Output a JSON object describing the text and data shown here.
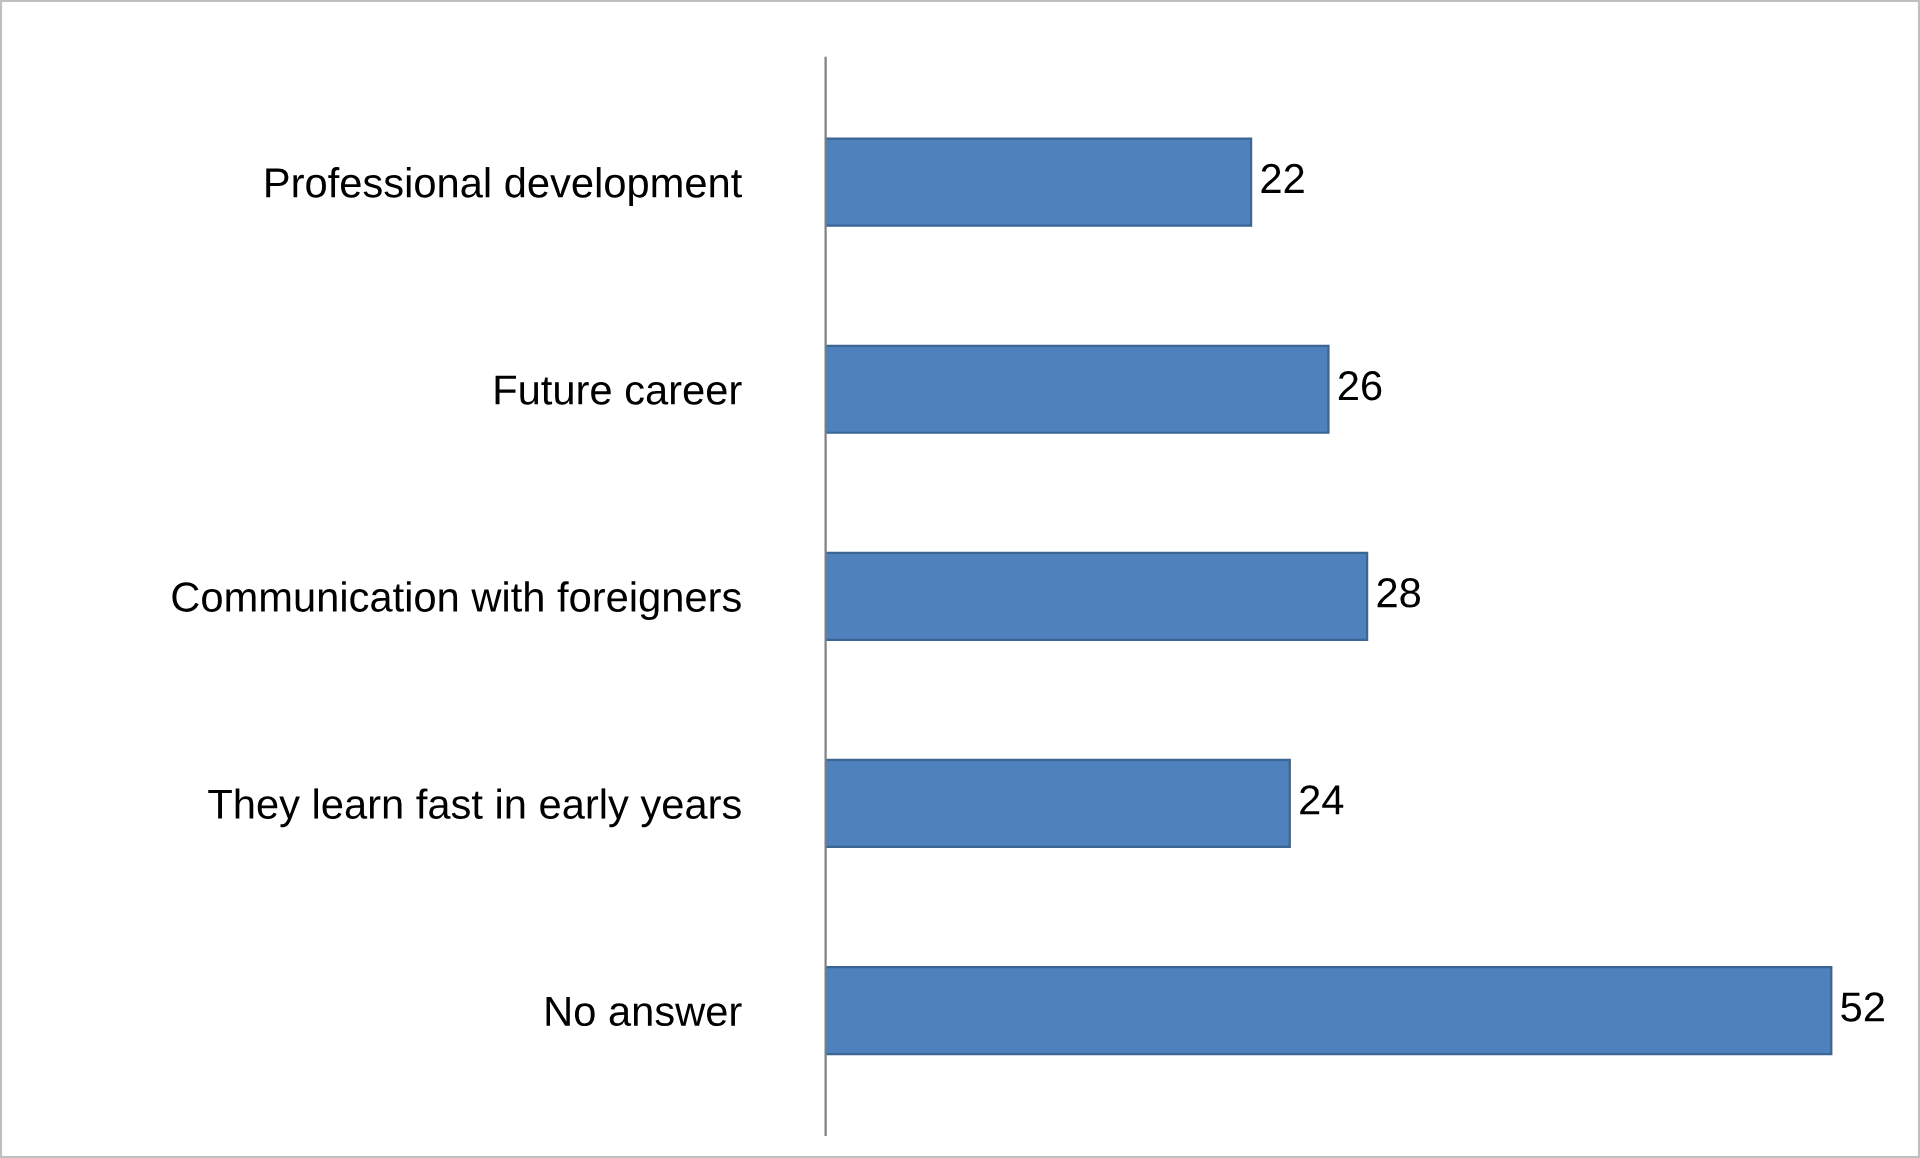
{
  "chart_data": {
    "type": "bar",
    "orientation": "horizontal",
    "categories": [
      "Professional development",
      "Future career",
      "Communication with foreigners",
      "They learn fast in early years",
      "No answer"
    ],
    "values": [
      22,
      26,
      28,
      24,
      52
    ],
    "color": "#4f81bd",
    "data_labels": true,
    "tick_labels": "y",
    "grid": false,
    "legend": false
  }
}
